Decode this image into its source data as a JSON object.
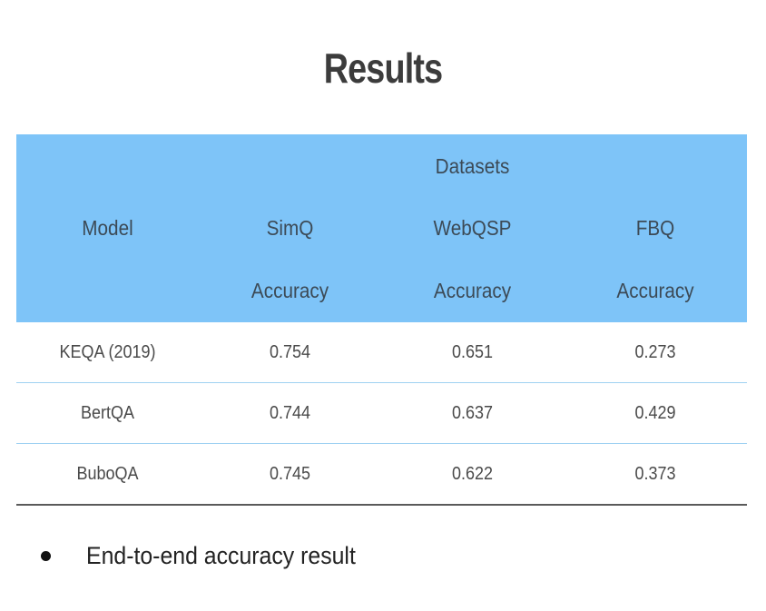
{
  "title": "Results",
  "table": {
    "header": {
      "group_label": "Datasets",
      "model_label": "Model",
      "datasets": [
        "SimQ",
        "WebQSP",
        "FBQ"
      ],
      "metric_label": "Accuracy"
    },
    "rows": [
      {
        "model": "KEQA (2019)",
        "values": [
          "0.754",
          "0.651",
          "0.273"
        ]
      },
      {
        "model": "BertQA",
        "values": [
          "0.744",
          "0.637",
          "0.429"
        ]
      },
      {
        "model": "BuboQA",
        "values": [
          "0.745",
          "0.622",
          "0.373"
        ]
      }
    ]
  },
  "bullets": [
    "End-to-end accuracy result"
  ]
}
